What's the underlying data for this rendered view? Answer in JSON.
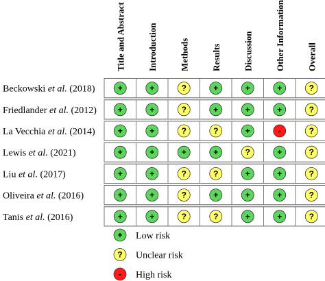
{
  "chart_data": {
    "type": "table",
    "columns": [
      "Title and Abstract",
      "Introduction",
      "Methods",
      "Results",
      "Discussion",
      "Other Information",
      "Overall"
    ],
    "rows": [
      {
        "study": "Beckowski",
        "etal": "et al.",
        "year": "(2018)",
        "ratings": [
          "low",
          "low",
          "unclear",
          "low",
          "low",
          "low",
          "unclear"
        ]
      },
      {
        "study": "Friedlander",
        "etal": "et al.",
        "year": "(2012)",
        "ratings": [
          "low",
          "low",
          "unclear",
          "low",
          "low",
          "low",
          "unclear"
        ]
      },
      {
        "study": "La Vecchia",
        "etal": "et al.",
        "year": "(2014)",
        "ratings": [
          "low",
          "low",
          "unclear",
          "unclear",
          "low",
          "high",
          "unclear"
        ]
      },
      {
        "study": "Lewis",
        "etal": "et al.",
        "year": "(2021)",
        "ratings": [
          "low",
          "low",
          "low",
          "low",
          "unclear",
          "low",
          "unclear"
        ]
      },
      {
        "study": "Liu",
        "etal": "et al.",
        "year": "(2017)",
        "ratings": [
          "low",
          "low",
          "unclear",
          "unclear",
          "low",
          "low",
          "unclear"
        ]
      },
      {
        "study": "Oliveira",
        "etal": "et al.",
        "year": "(2016)",
        "ratings": [
          "low",
          "low",
          "unclear",
          "low",
          "low",
          "low",
          "unclear"
        ]
      },
      {
        "study": "Tanis",
        "etal": "et al.",
        "year": "(2016)",
        "ratings": [
          "low",
          "low",
          "unclear",
          "unclear",
          "low",
          "low",
          "unclear"
        ]
      }
    ],
    "legend": [
      {
        "key": "low",
        "symbol": "+",
        "label": "Low risk",
        "color": "#5cd65c"
      },
      {
        "key": "unclear",
        "symbol": "?",
        "label": "Unclear risk",
        "color": "#ffff66"
      },
      {
        "key": "high",
        "symbol": "-",
        "label": "High risk",
        "color": "#ff1a1a"
      }
    ],
    "border_color": "#7a7a7a"
  }
}
